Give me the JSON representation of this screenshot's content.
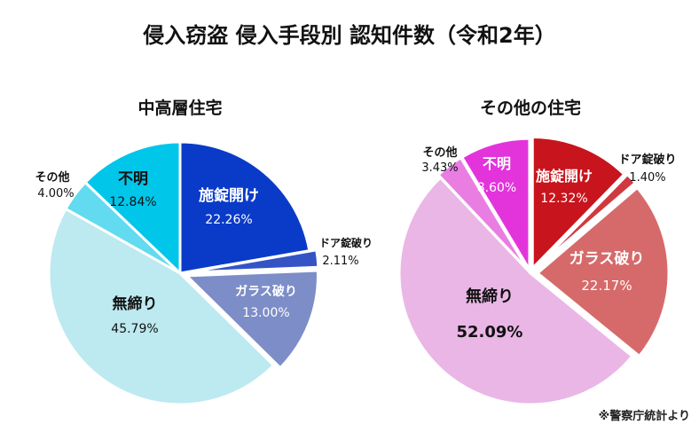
{
  "title": "侵入窃盗 侵入手段別 認知件数（令和2年）",
  "note": "※警察庁統計より",
  "chart_data": [
    {
      "type": "pie",
      "title": "中高層住宅",
      "slices": [
        {
          "label": "施錠開け",
          "value": 22.26,
          "display": "22.26%",
          "color": "#0a3bc8",
          "text_color": "#ffffff"
        },
        {
          "label": "ドア錠破り",
          "value": 2.11,
          "display": "2.11%",
          "color": "#3454c6",
          "text_color": "#111111"
        },
        {
          "label": "ガラス破り",
          "value": 13.0,
          "display": "13.00%",
          "color": "#7d8dc7",
          "text_color": "#ffffff"
        },
        {
          "label": "無締り",
          "value": 45.79,
          "display": "45.79%",
          "color": "#bde9f0",
          "text_color": "#111111"
        },
        {
          "label": "その他",
          "value": 4.0,
          "display": "4.00%",
          "color": "#62daf0",
          "text_color": "#111111"
        },
        {
          "label": "不明",
          "value": 12.84,
          "display": "12.84%",
          "color": "#00c6ea",
          "text_color": "#111111"
        }
      ]
    },
    {
      "type": "pie",
      "title": "その他の住宅",
      "slices": [
        {
          "label": "施錠開け",
          "value": 12.32,
          "display": "12.32%",
          "color": "#c8141c",
          "text_color": "#ffffff"
        },
        {
          "label": "ドア錠破り",
          "value": 1.4,
          "display": "1.40%",
          "color": "#cf3a40",
          "text_color": "#111111"
        },
        {
          "label": "ガラス破り",
          "value": 22.17,
          "display": "22.17%",
          "color": "#d66a6a",
          "text_color": "#ffffff"
        },
        {
          "label": "無締り",
          "value": 52.09,
          "display": "52.09%",
          "color": "#eab6e6",
          "text_color": "#111111"
        },
        {
          "label": "その他",
          "value": 3.43,
          "display": "3.43%",
          "color": "#e97de2",
          "text_color": "#111111"
        },
        {
          "label": "不明",
          "value": 8.6,
          "display": "8.60%",
          "color": "#e334dc",
          "text_color": "#ffffff"
        }
      ]
    }
  ]
}
